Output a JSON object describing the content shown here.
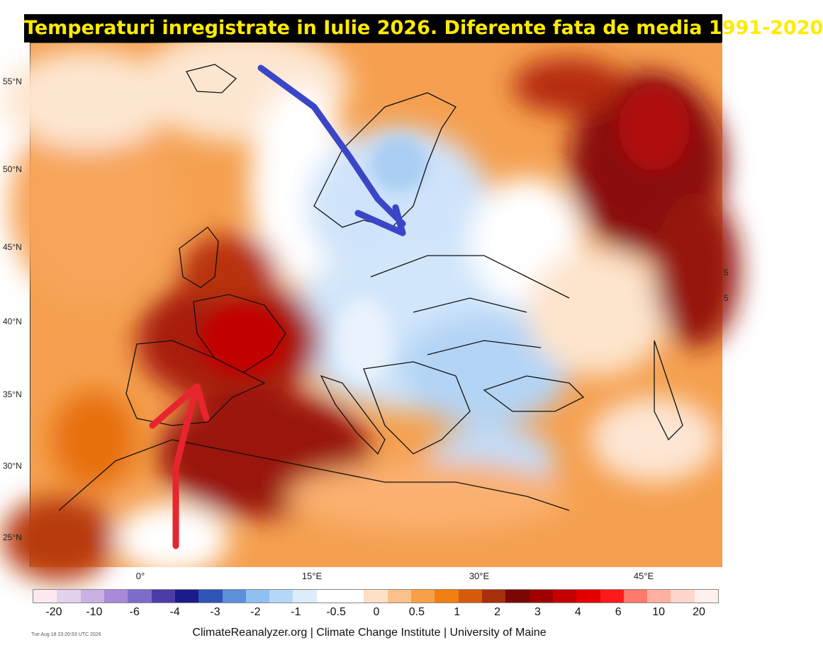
{
  "title": "Temperaturi inregistrate in Iulie 2026. Diferente fata de media 1991-2020",
  "latitude_labels": [
    "55°N",
    "50°N",
    "45°N",
    "40°N",
    "35°N",
    "30°N",
    "25°N"
  ],
  "longitude_labels": [
    "0°",
    "15°E",
    "30°E",
    "45°E"
  ],
  "legend": {
    "labels": [
      "-20",
      "-10",
      "-6",
      "-4",
      "-3",
      "-2",
      "-1",
      "-0.5",
      "0",
      "0.5",
      "1",
      "2",
      "3",
      "4",
      "6",
      "10",
      "20"
    ],
    "colors": [
      "#fde8ee",
      "#e2d2ee",
      "#cbb0e6",
      "#a98ad8",
      "#7d6ccb",
      "#4b3ca8",
      "#1b1b8c",
      "#2f55b8",
      "#5d8fdb",
      "#8ec0f2",
      "#b5d7f7",
      "#dcecfb",
      "#ffffff",
      "#ffffff",
      "#fde0c6",
      "#fbc08a",
      "#f7a048",
      "#f27f10",
      "#d65a0a",
      "#a8300a",
      "#7a0606",
      "#a00000",
      "#c40000",
      "#e30000",
      "#ff1a1a",
      "#ff7a6a",
      "#ffb0a0",
      "#ffd6cc",
      "#fff0ee"
    ]
  },
  "edge_fragments": [
    "5",
    "5"
  ],
  "timestamp": "Tue Aug 18 23:20:53 UTC 2026",
  "credits": "ClimateReanalyzer.org | Climate Change Institute | University of Maine",
  "annotation_arrows": [
    {
      "color": "#3b46c6",
      "meaning": "cool air from the north"
    },
    {
      "color": "#e8252e",
      "meaning": "hot air from the south"
    }
  ]
}
